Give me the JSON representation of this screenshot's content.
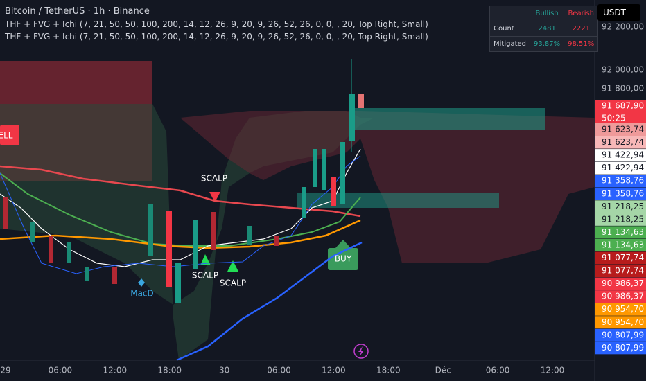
{
  "header": {
    "title": "Bitcoin / TetherUS · 1h · Binance",
    "indicators": [
      "THF + FVG + Ichi (7, 21, 50, 50, 100, 200, 14, 12, 26, 9, 20, 9, 26, 52, 26, 0, 0, , 20, Top Right, Small)",
      "THF + FVG + Ichi (7, 21, 50, 50, 100, 200, 14, 12, 26, 9, 20, 9, 26, 52, 26, 0, 0, , 20, Top Right, Small)"
    ]
  },
  "stats_table": {
    "columns": [
      "",
      "Bullish",
      "Bearish"
    ],
    "rows": [
      [
        "Count",
        "2481",
        "2221"
      ],
      [
        "Mitigated",
        "93.87%",
        "98.51%"
      ]
    ]
  },
  "currency": "USDT",
  "price_axis": {
    "ticks": [
      "92 200,00",
      "92 000,00",
      "91 800,00"
    ],
    "current": {
      "price": "91 687,90",
      "countdown": "50:25",
      "color": "#f23645"
    },
    "labels": [
      {
        "text": "91 623,74",
        "color": "#ef9a9a"
      },
      {
        "text": "91 623,74",
        "color": "#f7b7b7"
      },
      {
        "text": "91 422,94",
        "color": "#ffffff"
      },
      {
        "text": "91 422,94",
        "color": "#ffffff"
      },
      {
        "text": "91 358,76",
        "color": "#2962ff"
      },
      {
        "text": "91 358,76",
        "color": "#2962ff"
      },
      {
        "text": "91 218,25",
        "color": "#a5d6a7"
      },
      {
        "text": "91 218,25",
        "color": "#a5d6a7"
      },
      {
        "text": "91 134,63",
        "color": "#4caf50"
      },
      {
        "text": "91 134,63",
        "color": "#4caf50"
      },
      {
        "text": "91 077,74",
        "color": "#b71c1c"
      },
      {
        "text": "91 077,74",
        "color": "#b71c1c"
      },
      {
        "text": "90 986,37",
        "color": "#f23645"
      },
      {
        "text": "90 986,37",
        "color": "#f23645"
      },
      {
        "text": "90 954,70",
        "color": "#ff9800"
      },
      {
        "text": "90 954,70",
        "color": "#ff9800"
      },
      {
        "text": "90 807,99",
        "color": "#2962ff"
      },
      {
        "text": "90 807,99",
        "color": "#2962ff"
      }
    ]
  },
  "time_axis": [
    "29",
    "06:00",
    "12:00",
    "18:00",
    "30",
    "06:00",
    "12:00",
    "18:00",
    "Déc",
    "06:00",
    "12:00"
  ],
  "annotations": [
    "ELL",
    "SCALP",
    "SCALP",
    "SCALP",
    "BUY",
    "MacD"
  ]
}
